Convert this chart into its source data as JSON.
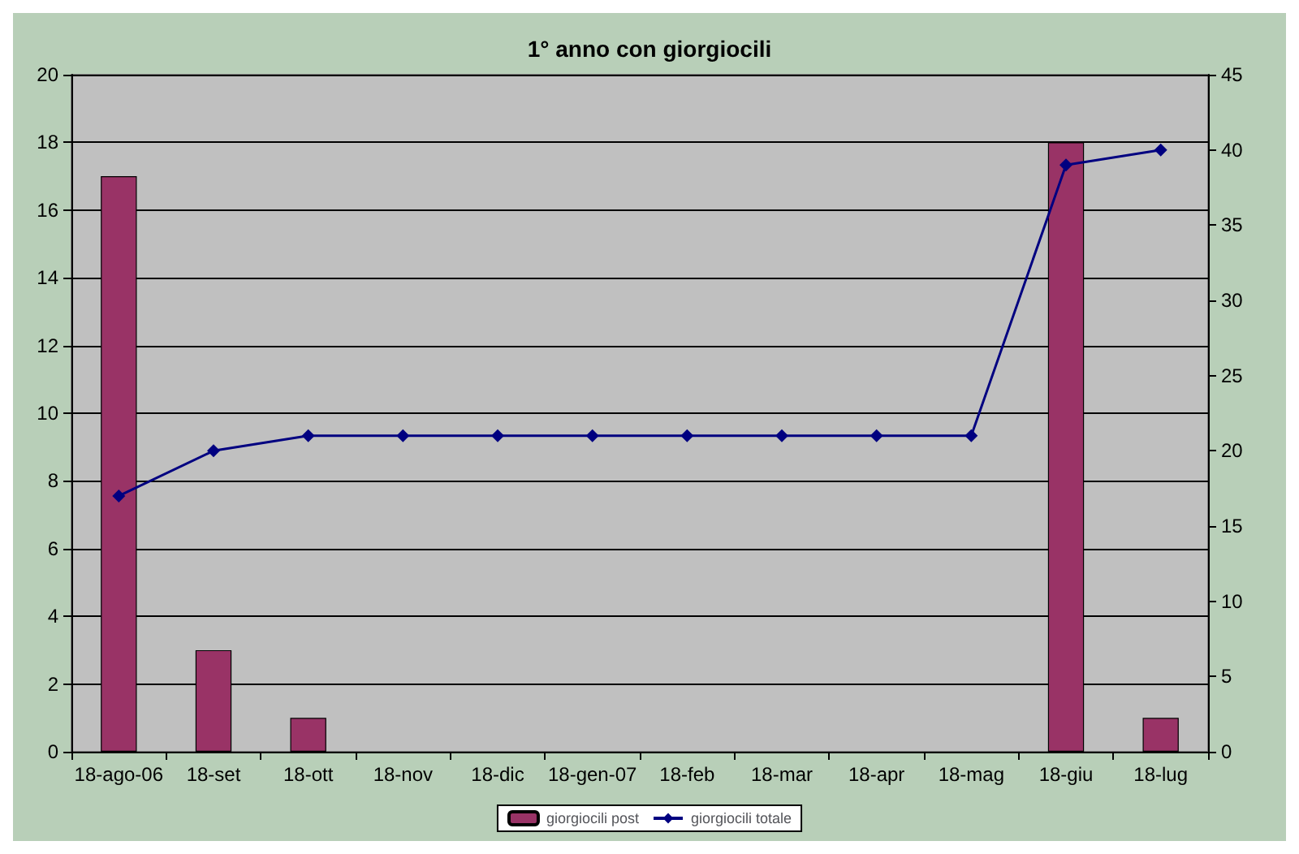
{
  "chart_data": {
    "type": "bar",
    "title": "1° anno con giorgiocili",
    "categories": [
      "18-ago-06",
      "18-set",
      "18-ott",
      "18-nov",
      "18-dic",
      "18-gen-07",
      "18-feb",
      "18-mar",
      "18-apr",
      "18-mag",
      "18-giu",
      "18-lug"
    ],
    "series": [
      {
        "name": "giorgiocili post",
        "color": "#993366",
        "values": [
          17,
          3,
          1,
          0,
          0,
          0,
          0,
          0,
          0,
          0,
          18,
          1
        ]
      },
      {
        "name": "giorgiocili totale",
        "type": "line",
        "axis": "y2",
        "color": "#000080",
        "values": [
          17,
          20,
          21,
          21,
          21,
          21,
          21,
          21,
          21,
          21,
          39,
          40
        ]
      }
    ],
    "ylim": [
      0,
      20
    ],
    "yticks": [
      0,
      2,
      4,
      6,
      8,
      10,
      12,
      14,
      16,
      18,
      20
    ],
    "y2lim": [
      0,
      45
    ],
    "y2ticks": [
      0,
      5,
      10,
      15,
      20,
      25,
      30,
      35,
      40,
      45
    ],
    "grid": "y",
    "legend": "bottom",
    "marker": "diamond",
    "line_style": "solid"
  }
}
